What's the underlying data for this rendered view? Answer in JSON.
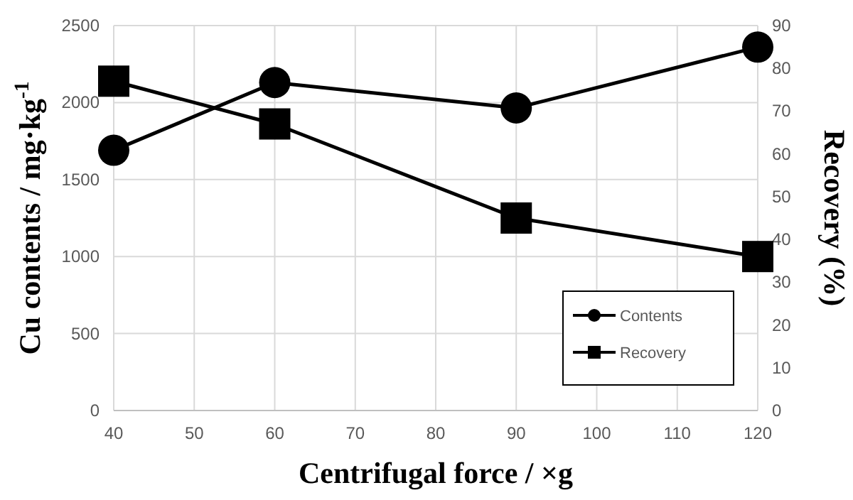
{
  "chart_data": {
    "type": "line",
    "xlabel": "Centrifugal force / ×g",
    "ylabel": "Cu contents / mg·kg$^{-1}$",
    "y2label": "Recovery (%)",
    "x": [
      40,
      60,
      90,
      120
    ],
    "series": [
      {
        "name": "Contents",
        "color": "#000000",
        "values": [
          1690,
          2130,
          1965,
          2360
        ],
        "marker": "circle"
      },
      {
        "name": "Recovery",
        "color": "#000000",
        "values": [
          77,
          67,
          45,
          36
        ],
        "axis": "y2",
        "marker": "square"
      }
    ],
    "xlim": [
      40,
      120
    ],
    "xticks": [
      40,
      50,
      60,
      70,
      80,
      90,
      100,
      110,
      120
    ],
    "ylim": [
      0,
      2500
    ],
    "yticks": [
      0,
      500,
      1000,
      1500,
      2000,
      2500
    ],
    "y2lim": [
      0,
      90
    ],
    "y2ticks": [
      0,
      10,
      20,
      30,
      40,
      50,
      60,
      70,
      80,
      90
    ],
    "grid": true,
    "legend": "bottom right"
  }
}
